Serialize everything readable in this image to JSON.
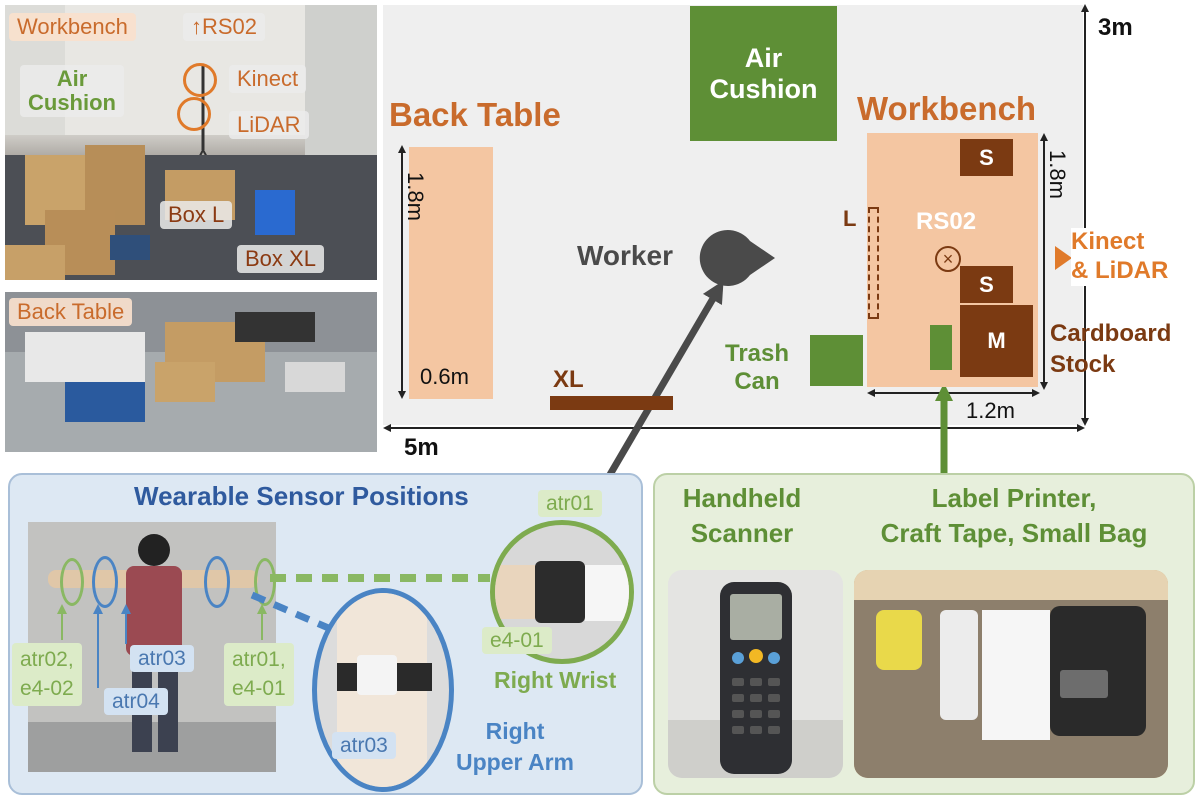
{
  "colors": {
    "orange": "#c96b2c",
    "table_fill": "#f4c6a2",
    "green": "#5e8f36",
    "brown": "#7b3a12",
    "gray": "#4a4a4a",
    "blue_title": "#2f5a9e",
    "light_green": "#8ab863"
  },
  "workbench_photo": {
    "tag_workbench": "Workbench",
    "tag_rs02": "↑RS02",
    "tag_air_cushion": "Air\nCushion",
    "tag_kinect": "Kinect",
    "tag_lidar": "LiDAR",
    "tag_box_l": "Box L",
    "tag_box_xl": "Box XL"
  },
  "backtable_photo": {
    "tag_back_table": "Back Table"
  },
  "floor_plan": {
    "dim_width": "5m",
    "dim_height": "3m",
    "back_table_title": "Back Table",
    "back_table_len": "1.8m",
    "back_table_wid": "0.6m",
    "air_cushion": "Air\nCushion",
    "workbench_title": "Workbench",
    "workbench_len": "1.8m",
    "workbench_wid": "1.2m",
    "rs02": "RS02",
    "box_s1": "S",
    "box_s2": "S",
    "box_m": "M",
    "box_l": "L",
    "box_xl": "XL",
    "worker": "Worker",
    "trash_can": "Trash\nCan",
    "kinect_lidar": "Kinect\n& LiDAR",
    "cardboard_stock": "Cardboard\nStock"
  },
  "wearable": {
    "title": "Wearable Sensor Positions",
    "tag_atr02_e402": "atr02,\ne4-02",
    "tag_atr03": "atr03",
    "tag_atr04": "atr04",
    "tag_atr01_e401": "atr01,\ne4-01",
    "tag_atr03_zoom": "atr03",
    "right_upper_arm": "Right\nUpper Arm",
    "tag_atr01_wrist": "atr01",
    "tag_e401_wrist": "e4-01",
    "right_wrist": "Right Wrist"
  },
  "tools": {
    "handheld_scanner": "Handheld\nScanner",
    "label_printer": "Label Printer,\nCraft Tape, Small Bag"
  }
}
